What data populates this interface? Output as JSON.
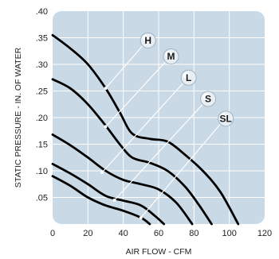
{
  "chart_data": {
    "type": "line",
    "xlabel": "AIR FLOW - CFM",
    "ylabel": "STATIC PRESSURE - IN. OF WATER",
    "xlim": [
      0,
      120
    ],
    "ylim": [
      0,
      0.4
    ],
    "x_ticks": [
      "0",
      "20",
      "40",
      "60",
      "80",
      "100",
      "120"
    ],
    "y_ticks": [
      ".05",
      ".10",
      ".15",
      ".20",
      ".25",
      ".30",
      ".35",
      ".40"
    ],
    "grid": true,
    "colors": {
      "plot_bg": "#c9d9e6",
      "grid": "#ffffff",
      "curve": "#000000",
      "marker": "#e9eef3"
    },
    "series": [
      {
        "name": "H",
        "points": [
          [
            0,
            0.355
          ],
          [
            10,
            0.33
          ],
          [
            20,
            0.3
          ],
          [
            30,
            0.255
          ],
          [
            38,
            0.21
          ],
          [
            45,
            0.17
          ],
          [
            55,
            0.16
          ],
          [
            65,
            0.155
          ],
          [
            75,
            0.13
          ],
          [
            85,
            0.1
          ],
          [
            95,
            0.06
          ],
          [
            105,
            0.0
          ]
        ]
      },
      {
        "name": "M",
        "points": [
          [
            0,
            0.272
          ],
          [
            10,
            0.255
          ],
          [
            20,
            0.225
          ],
          [
            30,
            0.185
          ],
          [
            38,
            0.15
          ],
          [
            45,
            0.125
          ],
          [
            55,
            0.115
          ],
          [
            65,
            0.1
          ],
          [
            75,
            0.07
          ],
          [
            83,
            0.035
          ],
          [
            90,
            0.0
          ]
        ]
      },
      {
        "name": "L",
        "points": [
          [
            0,
            0.168
          ],
          [
            10,
            0.148
          ],
          [
            20,
            0.125
          ],
          [
            30,
            0.1
          ],
          [
            40,
            0.083
          ],
          [
            50,
            0.075
          ],
          [
            60,
            0.065
          ],
          [
            70,
            0.04
          ],
          [
            79,
            0.0
          ]
        ]
      },
      {
        "name": "S",
        "points": [
          [
            0,
            0.113
          ],
          [
            10,
            0.095
          ],
          [
            20,
            0.075
          ],
          [
            30,
            0.053
          ],
          [
            40,
            0.044
          ],
          [
            50,
            0.035
          ],
          [
            58,
            0.015
          ],
          [
            63,
            0.0
          ]
        ]
      },
      {
        "name": "SL",
        "points": [
          [
            0,
            0.09
          ],
          [
            10,
            0.072
          ],
          [
            20,
            0.05
          ],
          [
            30,
            0.035
          ],
          [
            40,
            0.025
          ],
          [
            50,
            0.012
          ],
          [
            55,
            0.0
          ]
        ]
      }
    ],
    "markers": [
      {
        "label": "H",
        "curve_point": [
          30,
          0.255
        ],
        "label_point": [
          54,
          0.345
        ]
      },
      {
        "label": "M",
        "curve_point": [
          30,
          0.183
        ],
        "label_point": [
          67,
          0.315
        ]
      },
      {
        "label": "L",
        "curve_point": [
          28,
          0.097
        ],
        "label_point": [
          77,
          0.275
        ]
      },
      {
        "label": "S",
        "curve_point": [
          35,
          0.045
        ],
        "label_point": [
          88,
          0.235
        ]
      },
      {
        "label": "SL",
        "curve_point": [
          50,
          0.012
        ],
        "label_point": [
          98,
          0.198
        ]
      }
    ]
  }
}
